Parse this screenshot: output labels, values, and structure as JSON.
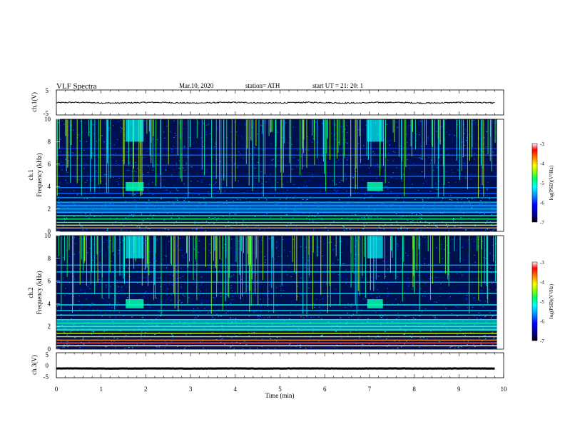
{
  "header": {
    "title": "VLF  Spectra",
    "date": "Mar.10, 2020",
    "station": "station= ATH",
    "start": "start  UT  =    21: 20: 1"
  },
  "chart_data": [
    {
      "type": "line",
      "ylabel": "ch.1(V)",
      "ylim": [
        -5,
        5
      ],
      "yticks": [
        "5",
        "-5"
      ],
      "xlim": [
        0,
        10
      ],
      "series": [
        {
          "baseline": -0.1,
          "noise_amplitude": 0.3
        }
      ]
    },
    {
      "type": "heatmap",
      "ylabel": "ch.1\nFrequency  (kHz)",
      "ylim": [
        0,
        10
      ],
      "yticks": [
        "0",
        "2",
        "4",
        "6",
        "8",
        "10"
      ],
      "xlim": [
        0,
        10
      ],
      "colorbar": {
        "label": "log(PSD)(V²/Hz)",
        "ticks": [
          "-3",
          "-4",
          "-5",
          "-6",
          "-7"
        ],
        "range": [
          -7,
          -3
        ]
      },
      "events": [
        {
          "x_min": [
            1.55,
            1.95
          ],
          "f_khz": [
            3.6,
            4.4
          ],
          "note": ""
        },
        {
          "x_min": [
            6.95,
            7.3
          ],
          "f_khz": [
            3.6,
            4.4
          ],
          "note": ""
        }
      ]
    },
    {
      "type": "heatmap",
      "ylabel": "ch.2\nFrequency  (kHz)",
      "ylim": [
        0,
        10
      ],
      "yticks": [
        "0",
        "2",
        "4",
        "6",
        "8",
        "10"
      ],
      "xlim": [
        0,
        10
      ],
      "colorbar": {
        "label": "log(PSD)(V²/Hz)",
        "ticks": [
          "-3",
          "-4",
          "-5",
          "-6",
          "-7"
        ],
        "range": [
          -7,
          -3
        ]
      }
    },
    {
      "type": "line",
      "ylabel": "ch.3(V)",
      "ylim": [
        -5,
        5
      ],
      "yticks": [
        "5",
        "0",
        "-5"
      ],
      "xlim": [
        0,
        10
      ],
      "xlabel": "Time  (min)",
      "xticks": [
        "0",
        "1",
        "2",
        "3",
        "4",
        "5",
        "6",
        "7",
        "8",
        "9",
        "10"
      ],
      "series": [
        {
          "baseline": -1.3,
          "noise_amplitude": 0.05
        }
      ]
    }
  ]
}
